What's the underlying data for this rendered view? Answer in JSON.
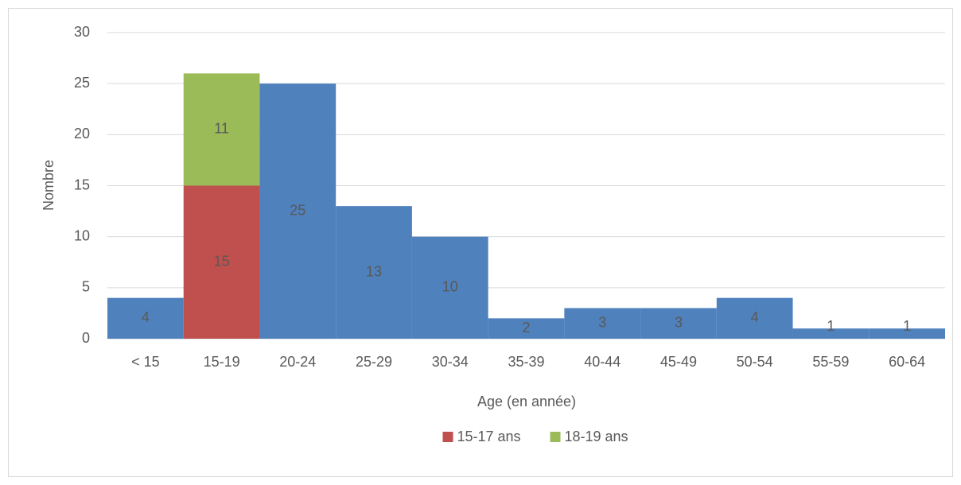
{
  "chart_data": {
    "type": "bar",
    "stacked": true,
    "xlabel": "Age (en année)",
    "ylabel": "Nombre",
    "categories": [
      "< 15",
      "15-19",
      "20-24",
      "25-29",
      "30-34",
      "35-39",
      "40-44",
      "45-49",
      "50-54",
      "55-59",
      "60-64"
    ],
    "series": [
      {
        "color": "#4f81bd",
        "values": [
          4,
          null,
          25,
          13,
          10,
          2,
          3,
          3,
          4,
          1,
          1
        ]
      },
      {
        "name": "15-17 ans",
        "color": "#c0504d",
        "values": [
          null,
          15,
          null,
          null,
          null,
          null,
          null,
          null,
          null,
          null,
          null
        ]
      },
      {
        "name": "18-19 ans",
        "color": "#9bbb59",
        "values": [
          null,
          11,
          null,
          null,
          null,
          null,
          null,
          null,
          null,
          null,
          null
        ]
      }
    ],
    "ylim": [
      0,
      30
    ],
    "yticks": [
      0,
      5,
      10,
      15,
      20,
      25,
      30
    ],
    "grid": true,
    "legend": "bottom"
  }
}
